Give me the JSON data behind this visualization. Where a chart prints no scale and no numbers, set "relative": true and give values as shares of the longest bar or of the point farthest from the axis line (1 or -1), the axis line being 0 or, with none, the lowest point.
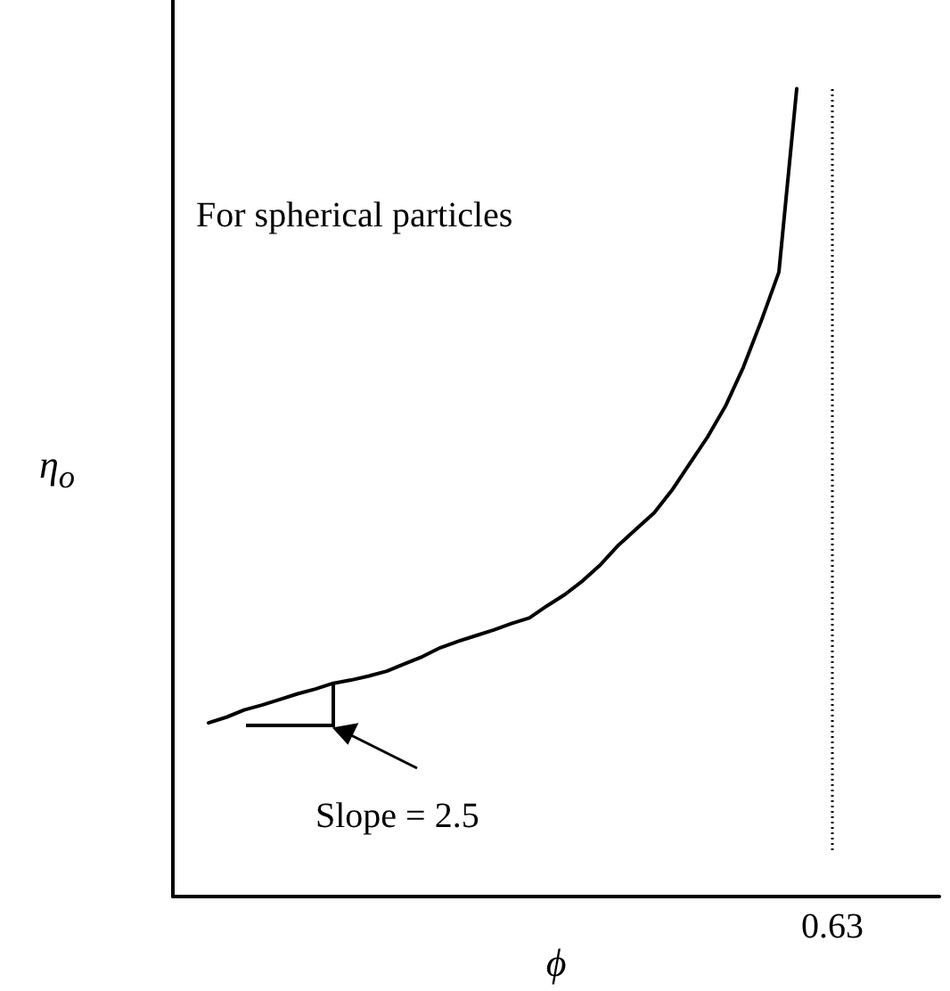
{
  "chart_data": {
    "type": "line",
    "relative": true,
    "xlabel": "ϕ",
    "ylabel": "η$_{o}$",
    "categories": [
      null,
      null,
      null,
      null,
      null,
      null,
      null,
      null,
      null,
      null,
      null,
      null,
      null,
      null,
      null,
      null,
      null,
      null,
      null,
      null,
      null,
      null,
      null,
      null,
      null,
      null,
      null,
      null,
      null,
      null,
      null,
      null,
      null,
      null,
      null,
      null,
      null,
      null,
      null,
      null,
      null,
      null,
      null,
      null
    ],
    "series": [
      {
        "color": "#000000",
        "values": [
          null,
          null,
          0.215,
          0.222,
          0.231,
          0.237,
          0.244,
          0.251,
          0.257,
          0.264,
          0.268,
          0.273,
          0.279,
          0.288,
          0.297,
          0.308,
          0.316,
          0.323,
          0.33,
          0.338,
          0.345,
          0.36,
          0.374,
          0.391,
          0.411,
          0.435,
          0.455,
          0.475,
          0.503,
          0.536,
          0.569,
          0.607,
          0.655,
          0.712,
          0.773,
          1,
          null,
          null,
          null,
          null,
          null,
          null,
          null,
          null
        ]
      }
    ],
    "annotations": [
      "For spherical particles",
      "Slope = 2.5",
      "0.63"
    ]
  }
}
